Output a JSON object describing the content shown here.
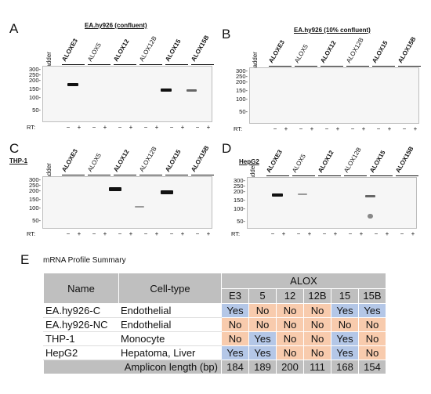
{
  "panels": {
    "A": {
      "label": "A",
      "title": "EA.hy926 (confluent)",
      "ladder": "Ladder",
      "lanes": [
        {
          "name": "ALOXE3",
          "bold": true
        },
        {
          "name": "ALOX5",
          "bold": false
        },
        {
          "name": "ALOX12",
          "bold": true
        },
        {
          "name": "ALOX12B",
          "bold": false
        },
        {
          "name": "ALOX15",
          "bold": true
        },
        {
          "name": "ALOX15B",
          "bold": true
        }
      ],
      "mw": [
        "300-",
        "250-",
        "200-",
        "150-",
        "100-",
        "50-"
      ],
      "rt": "RT:",
      "signs": [
        "−",
        "+"
      ]
    },
    "B": {
      "label": "B",
      "title": "EA.hy926 (10% confluent)",
      "ladder": "Ladder",
      "lanes": [
        {
          "name": "ALOXE3",
          "bold": true
        },
        {
          "name": "ALOX5",
          "bold": false
        },
        {
          "name": "ALOX12",
          "bold": true
        },
        {
          "name": "ALOX12B",
          "bold": false
        },
        {
          "name": "ALOX15",
          "bold": true
        },
        {
          "name": "ALOX15B",
          "bold": true
        }
      ],
      "mw": [
        "300-",
        "250-",
        "200-",
        "150-",
        "100-",
        "50-"
      ],
      "rt": "RT:",
      "signs": [
        "−",
        "+"
      ]
    },
    "C": {
      "label": "C",
      "title": "THP-1",
      "ladder": "Ladder",
      "lanes": [
        {
          "name": "ALOXE3",
          "bold": true
        },
        {
          "name": "ALOX5",
          "bold": false
        },
        {
          "name": "ALOX12",
          "bold": true
        },
        {
          "name": "ALOX12B",
          "bold": false
        },
        {
          "name": "ALOX15",
          "bold": true
        },
        {
          "name": "ALOX15B",
          "bold": true
        }
      ],
      "mw": [
        "300-",
        "250-",
        "200-",
        "150-",
        "100-",
        "50-"
      ],
      "rt": "RT:",
      "signs": [
        "−",
        "+"
      ]
    },
    "D": {
      "label": "D",
      "title": "HepG2",
      "ladder": "Ladder",
      "lanes": [
        {
          "name": "ALOXE3",
          "bold": true
        },
        {
          "name": "ALOX5",
          "bold": false
        },
        {
          "name": "ALOX12",
          "bold": true
        },
        {
          "name": "ALOX12B",
          "bold": false
        },
        {
          "name": "ALOX15",
          "bold": true
        },
        {
          "name": "ALOX15B",
          "bold": true
        }
      ],
      "mw": [
        "300-",
        "250-",
        "200-",
        "150-",
        "100-",
        "50-"
      ],
      "rt": "RT:",
      "signs": [
        "−",
        "+"
      ]
    }
  },
  "summary": {
    "label": "E",
    "title": "mRNA Profile Summary",
    "col_name": "Name",
    "col_cell": "Cell-type",
    "col_alox": "ALOX",
    "isoforms": [
      "E3",
      "5",
      "12",
      "12B",
      "15",
      "15B"
    ],
    "rows": [
      {
        "name": "EA.hy926-C",
        "cell": "Endothelial",
        "values": [
          "Yes",
          "No",
          "No",
          "No",
          "Yes",
          "Yes"
        ]
      },
      {
        "name": "EA.hy926-NC",
        "cell": "Endothelial",
        "values": [
          "No",
          "No",
          "No",
          "No",
          "No",
          "No"
        ]
      },
      {
        "name": "THP-1",
        "cell": "Monocyte",
        "values": [
          "No",
          "Yes",
          "No",
          "No",
          "Yes",
          "No"
        ]
      },
      {
        "name": "HepG2",
        "cell": "Hepatoma, Liver",
        "values": [
          "Yes",
          "Yes",
          "No",
          "No",
          "Yes",
          "No"
        ]
      }
    ],
    "amplicon_label": "Amplicon length (bp)",
    "amplicon": [
      "184",
      "189",
      "200",
      "111",
      "168",
      "154"
    ],
    "colors": {
      "yes": "#b4c7e7",
      "no": "#f8cbad",
      "header": "#bfbfbf"
    }
  }
}
